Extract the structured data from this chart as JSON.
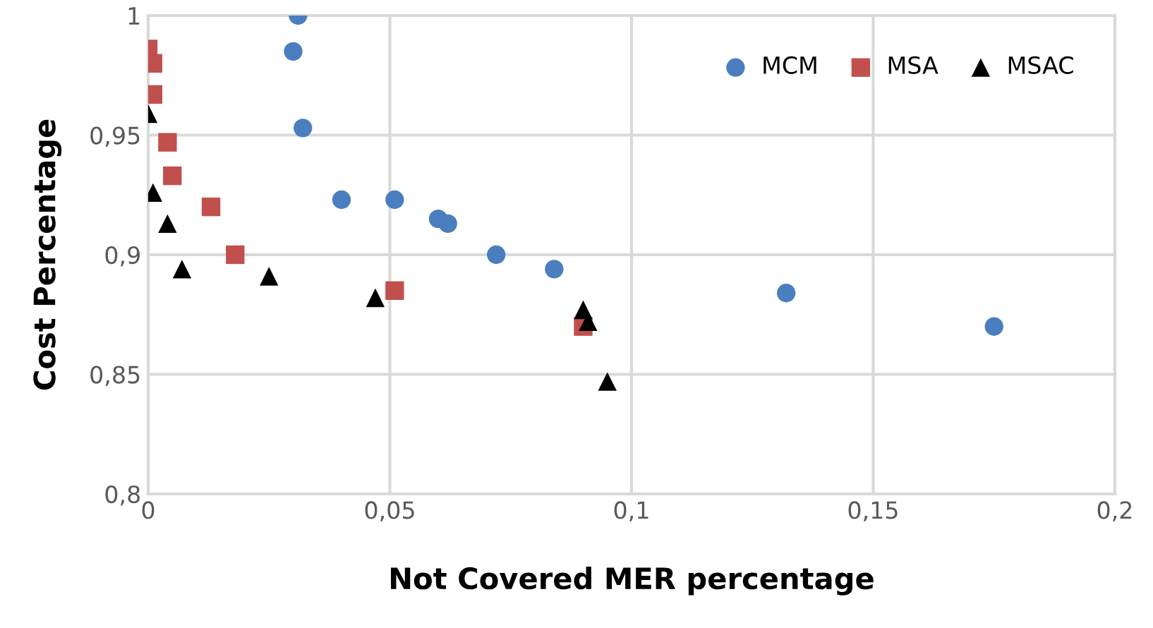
{
  "chart_data": {
    "type": "scatter",
    "xlabel": "Not Covered MER percentage",
    "ylabel": "Cost Percentage",
    "xlim": [
      0,
      0.2
    ],
    "ylim": [
      0.8,
      1
    ],
    "xticks": [
      0,
      {
        "value": 0.05,
        "label": "0,05"
      },
      {
        "value": 0.1,
        "label": "0,1"
      },
      {
        "value": 0.15,
        "label": "0,15"
      },
      {
        "value": 0.2,
        "label": "0,2"
      }
    ],
    "yticks": [
      {
        "value": 0.8,
        "label": "0,8"
      },
      {
        "value": 0.85,
        "label": "0,85"
      },
      {
        "value": 0.9,
        "label": "0,9"
      },
      {
        "value": 0.95,
        "label": "0,95"
      },
      1
    ],
    "grid": true,
    "legend": "top right",
    "series": [
      {
        "name": "MCM",
        "color": "#4a7ebf",
        "marker": "circle",
        "x": [
          0.031,
          0.03,
          0.032,
          0.04,
          0.051,
          0.06,
          0.062,
          0.072,
          0.084,
          0.132,
          0.175
        ],
        "values": [
          1.0,
          0.985,
          0.953,
          0.923,
          0.923,
          0.915,
          0.913,
          0.9,
          0.894,
          0.884,
          0.87
        ]
      },
      {
        "name": "MSA",
        "color": "#c0504d",
        "marker": "square",
        "x": [
          0.0,
          0.001,
          0.001,
          0.004,
          0.005,
          0.013,
          0.018,
          0.051,
          0.09
        ],
        "values": [
          0.986,
          0.98,
          0.967,
          0.947,
          0.933,
          0.92,
          0.9,
          0.885,
          0.87
        ]
      },
      {
        "name": "MSAC",
        "color": "#000000",
        "marker": "triangle",
        "x": [
          0.0,
          0.001,
          0.004,
          0.007,
          0.025,
          0.047,
          0.09,
          0.091,
          0.095
        ],
        "values": [
          0.959,
          0.926,
          0.913,
          0.894,
          0.891,
          0.882,
          0.877,
          0.872,
          0.847
        ]
      }
    ]
  }
}
